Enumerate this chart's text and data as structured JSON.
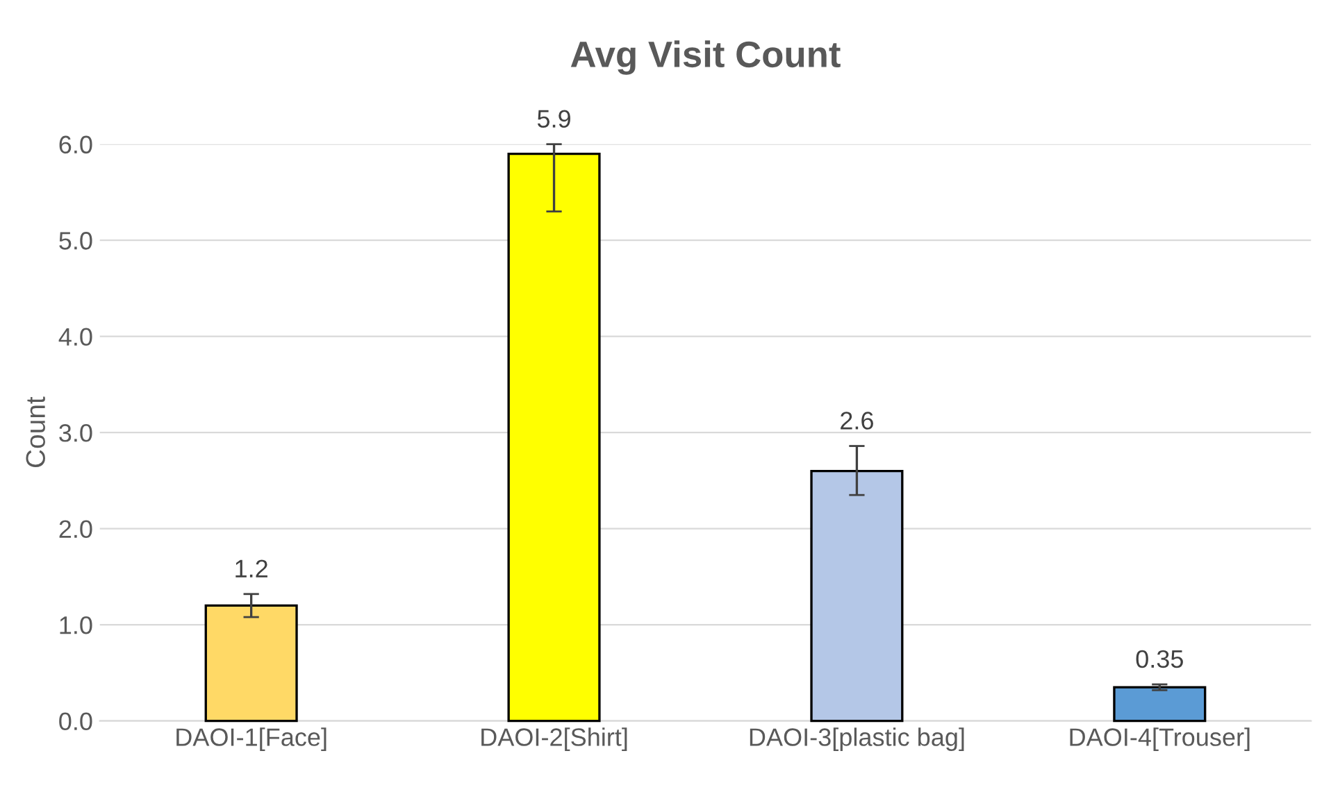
{
  "chart_data": {
    "type": "bar",
    "title": "Avg Visit Count",
    "ylabel": "Count",
    "categories": [
      "DAOI-1[Face]",
      "DAOI-2[Shirt]",
      "DAOI-3[plastic bag]",
      "DAOI-4[Trouser]"
    ],
    "values": [
      1.2,
      5.9,
      2.6,
      0.35
    ],
    "colors": [
      "#ffd966",
      "#ffff00",
      "#b4c7e7",
      "#5b9bd5"
    ],
    "errors": [
      [
        1.08,
        1.32
      ],
      [
        5.3,
        6.0
      ],
      [
        2.35,
        2.86
      ],
      [
        0.32,
        0.38
      ]
    ],
    "ylim": [
      0,
      6.0
    ],
    "yticks": [
      {
        "value": 0,
        "label": "0.0"
      },
      {
        "value": 1,
        "label": "1.0"
      },
      {
        "value": 2,
        "label": "2.0"
      },
      {
        "value": 3,
        "label": "3.0"
      },
      {
        "value": 4,
        "label": "4.0"
      },
      {
        "value": 5,
        "label": "5.0"
      },
      {
        "value": 6,
        "label": "6.0"
      }
    ],
    "grid": "y",
    "data_labels": true
  }
}
